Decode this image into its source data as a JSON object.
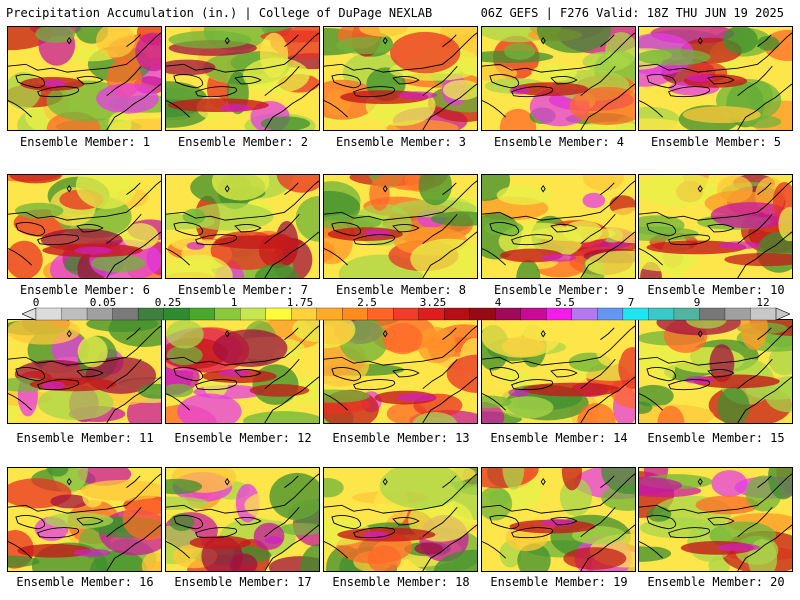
{
  "header": {
    "title_left": "Precipitation Accumulation (in.) | College of DuPage NEXLAB",
    "title_right": "06Z GEFS | F276 Valid: 18Z THU JUN 19 2025"
  },
  "panels": [
    {
      "label": "Ensemble Member: 1"
    },
    {
      "label": "Ensemble Member: 2"
    },
    {
      "label": "Ensemble Member: 3"
    },
    {
      "label": "Ensemble Member: 4"
    },
    {
      "label": "Ensemble Member: 5"
    },
    {
      "label": "Ensemble Member: 6"
    },
    {
      "label": "Ensemble Member: 7"
    },
    {
      "label": "Ensemble Member: 8"
    },
    {
      "label": "Ensemble Member: 9"
    },
    {
      "label": "Ensemble Member: 10"
    },
    {
      "label": "Ensemble Member: 11"
    },
    {
      "label": "Ensemble Member: 12"
    },
    {
      "label": "Ensemble Member: 13"
    },
    {
      "label": "Ensemble Member: 14"
    },
    {
      "label": "Ensemble Member: 15"
    },
    {
      "label": "Ensemble Member: 16"
    },
    {
      "label": "Ensemble Member: 17"
    },
    {
      "label": "Ensemble Member: 18"
    },
    {
      "label": "Ensemble Member: 19"
    },
    {
      "label": "Ensemble Member: 20"
    }
  ],
  "colorbar": {
    "labels": [
      "0",
      "0.05",
      "0.25",
      "1",
      "1.75",
      "2.5",
      "3.25",
      "4",
      "5.5",
      "7",
      "9",
      "12"
    ],
    "colors": [
      "#dcdcdc",
      "#bebebe",
      "#a0a0a0",
      "#7a7a7a",
      "#3f7f3f",
      "#2e8b2e",
      "#4aa82e",
      "#8cc83c",
      "#c8e650",
      "#fffa3c",
      "#ffd23c",
      "#ffaa28",
      "#ff8c1e",
      "#ff6428",
      "#f03c28",
      "#dc1e1e",
      "#b40f14",
      "#960a14",
      "#a00a5a",
      "#c80a96",
      "#f01ee6",
      "#b478f0",
      "#6496f0",
      "#1ee6f0",
      "#3cc8c8",
      "#50b4a0",
      "#787878",
      "#a0a0a0",
      "#c8c8c8"
    ]
  }
}
